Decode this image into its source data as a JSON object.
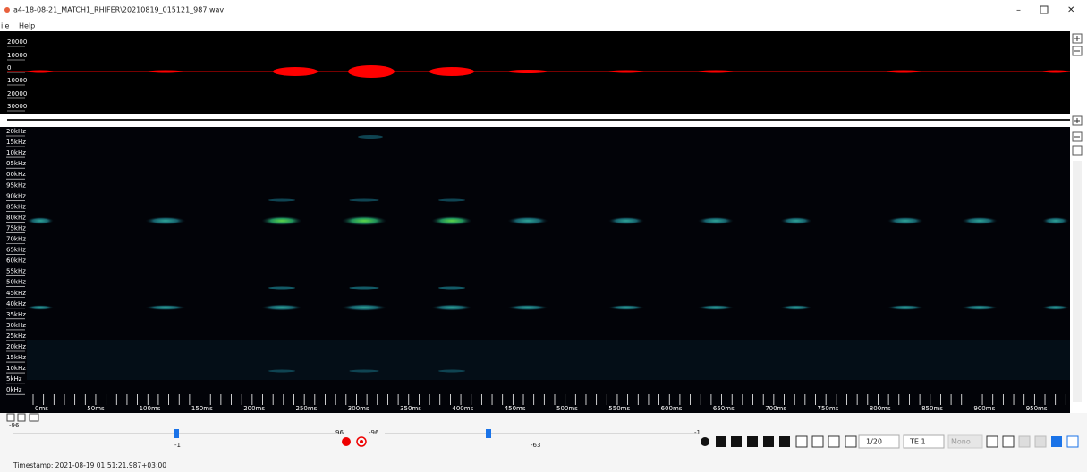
{
  "window": {
    "title": "a4-18-08-21_MATCH1_RHIFER\\20210819_015121_987.wav"
  },
  "menu": [
    "ile",
    "Help"
  ],
  "waveform": {
    "labels": [
      "20000",
      "10000",
      "0",
      "10000",
      "20000",
      "30000"
    ]
  },
  "spectrogram": {
    "frequency_labels": [
      "20kHz",
      "15kHz",
      "10kHz",
      "05kHz",
      "00kHz",
      "95kHz",
      "90kHz",
      "85kHz",
      "80kHz",
      "75kHz",
      "70kHz",
      "65kHz",
      "60kHz",
      "55kHz",
      "50kHz",
      "45kHz",
      "40kHz",
      "35kHz",
      "30kHz",
      "25kHz",
      "20kHz",
      "15kHz",
      "10kHz",
      "5kHz",
      "0kHz"
    ],
    "time_labels": [
      "0ms",
      "50ms",
      "100ms",
      "150ms",
      "200ms",
      "250ms",
      "300ms",
      "350ms",
      "400ms",
      "450ms",
      "500ms",
      "550ms",
      "600ms",
      "650ms",
      "700ms",
      "750ms",
      "800ms",
      "850ms",
      "900ms",
      "950ms"
    ]
  },
  "controls": {
    "gain_slider": {
      "min_label": "-96",
      "value_label": "-1",
      "max_label": "96"
    },
    "threshold_slider": {
      "min_label": "-96",
      "value_label": "-63",
      "max_label": "-1"
    },
    "page": "1/20",
    "channel": "TE 1",
    "mode": "Mono"
  },
  "status": {
    "timestamp": "Timestamp: 2021-08-19 01:51:21.987+03:00"
  }
}
